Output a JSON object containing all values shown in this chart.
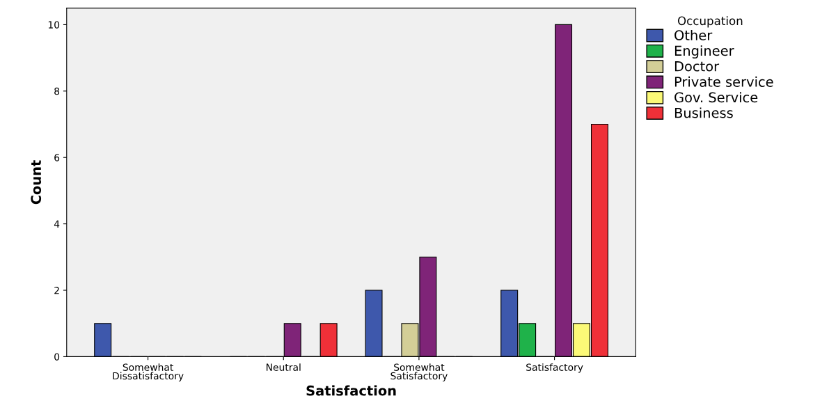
{
  "chart_data": {
    "type": "bar",
    "xlabel": "Satisfaction",
    "ylabel": "Count",
    "legend_title": "Occupation",
    "categories": [
      "Somewhat\nDissatisfactory",
      "Neutral",
      "Somewhat\nSatisfactory",
      "Satisfactory"
    ],
    "series": [
      {
        "name": "Other",
        "color": "#3e58ac",
        "values": [
          1,
          0,
          2,
          2
        ]
      },
      {
        "name": "Engineer",
        "color": "#1fb24a",
        "values": [
          0,
          0,
          0,
          1
        ]
      },
      {
        "name": "Doctor",
        "color": "#d3ce97",
        "values": [
          0,
          0,
          1,
          0
        ]
      },
      {
        "name": "Private service",
        "color": "#7f2478",
        "values": [
          0,
          1,
          3,
          10
        ]
      },
      {
        "name": "Gov. Service",
        "color": "#fbf977",
        "values": [
          0,
          0,
          0,
          1
        ]
      },
      {
        "name": "Business",
        "color": "#ef3038",
        "values": [
          0,
          1,
          0,
          7
        ]
      }
    ],
    "ylim": [
      0,
      10.5
    ],
    "yticks": [
      0,
      2,
      4,
      6,
      8,
      10
    ],
    "grid": false,
    "legend": "right"
  }
}
